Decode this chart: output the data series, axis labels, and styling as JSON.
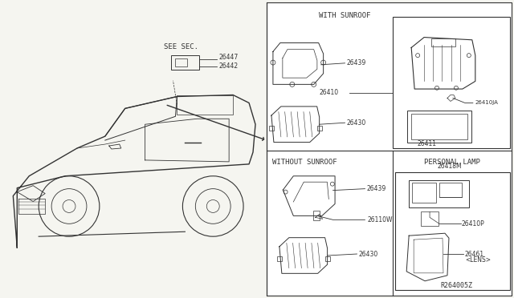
{
  "bg_color": "#f5f5f0",
  "line_color": "#333333",
  "title_ref": "R264005Z",
  "sections": {
    "with_sunroof": {
      "label": "WITH SUNROOF",
      "parts": [
        "26439",
        "26410",
        "26410JA",
        "26411",
        "26430"
      ]
    },
    "without_sunroof": {
      "label": "WITHOUT SUNROOF",
      "parts": [
        "26439",
        "26110W",
        "26430"
      ]
    },
    "personal_lamp": {
      "label": "PERSONAL LAMP",
      "parts": [
        "26418M",
        "26410P",
        "26461\n<LENS>"
      ]
    }
  },
  "see_sec_parts": [
    "26447",
    "26442"
  ],
  "figsize": [
    6.4,
    3.72
  ],
  "dpi": 100
}
